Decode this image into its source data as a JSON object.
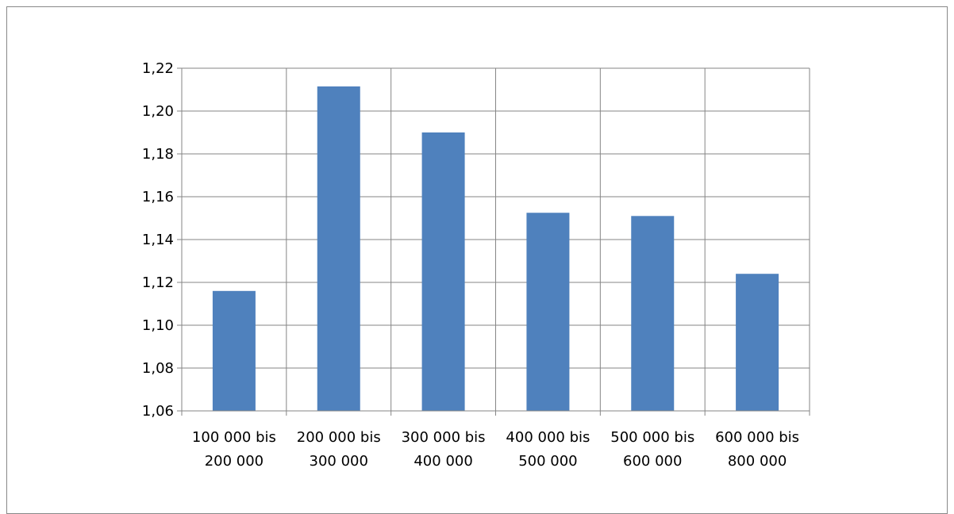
{
  "chart_data": {
    "type": "bar",
    "categories": [
      [
        "100 000 bis",
        "200 000"
      ],
      [
        "200 000 bis",
        "300 000"
      ],
      [
        "300 000 bis",
        "400 000"
      ],
      [
        "400 000 bis",
        "500 000"
      ],
      [
        "500 000 bis",
        "600 000"
      ],
      [
        "600 000   bis",
        "800 000"
      ]
    ],
    "values": [
      1.116,
      1.2115,
      1.19,
      1.1525,
      1.151,
      1.124
    ],
    "y_ticks": [
      "1,06",
      "1,08",
      "1,10",
      "1,12",
      "1,14",
      "1,16",
      "1,18",
      "1,20",
      "1,22"
    ],
    "ylim": [
      1.06,
      1.22
    ],
    "title": "",
    "xlabel": "",
    "ylabel": "",
    "grid": true,
    "legend": "none",
    "colors": {
      "bar": "#4F81BD",
      "grid": "#868686",
      "axis": "#868686",
      "frame": "#888888"
    }
  }
}
